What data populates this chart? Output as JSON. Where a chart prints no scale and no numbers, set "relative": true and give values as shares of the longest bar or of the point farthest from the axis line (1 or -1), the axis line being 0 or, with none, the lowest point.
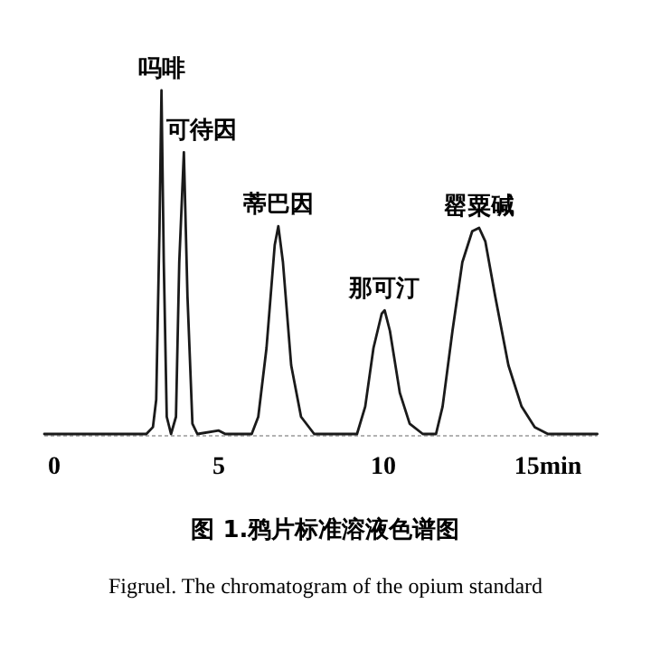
{
  "chart_data": {
    "type": "line",
    "relative": true,
    "color": "#1a1a1a",
    "x": [
      -0.3,
      2.8,
      3.0,
      3.1,
      3.2,
      3.26,
      3.33,
      3.42,
      3.55,
      3.7,
      3.8,
      3.94,
      4.05,
      4.2,
      4.35,
      5.0,
      5.2,
      6.0,
      6.2,
      6.45,
      6.7,
      6.81,
      6.95,
      7.2,
      7.5,
      7.9,
      9.2,
      9.45,
      9.7,
      9.95,
      10.04,
      10.2,
      10.5,
      10.8,
      11.2,
      11.6,
      11.8,
      12.1,
      12.4,
      12.7,
      12.91,
      13.1,
      13.4,
      13.8,
      14.2,
      14.6,
      15.0,
      16.5
    ],
    "values": [
      0,
      0,
      0.02,
      0.1,
      0.6,
      1,
      0.5,
      0.05,
      0,
      0.05,
      0.5,
      0.82,
      0.4,
      0.03,
      0,
      0.01,
      0,
      0,
      0.05,
      0.25,
      0.55,
      0.605,
      0.5,
      0.2,
      0.05,
      0,
      0,
      0.08,
      0.25,
      0.35,
      0.36,
      0.3,
      0.12,
      0.03,
      0,
      0,
      0.08,
      0.3,
      0.5,
      0.59,
      0.6,
      0.56,
      0.4,
      0.2,
      0.08,
      0.02,
      0,
      0
    ],
    "xlim": [
      -0.3,
      16.5
    ],
    "xticks": [
      0,
      5,
      10,
      {
        "value": 15,
        "label": "15min"
      }
    ],
    "annotations": [
      {
        "text": "吗啡",
        "x": 3.26,
        "y": 1
      },
      {
        "text": "可待因",
        "x": 3.94,
        "y": 0.82
      },
      {
        "text": "蒂巴因",
        "x": 6.81,
        "y": 0.605
      },
      {
        "text": "那可汀",
        "x": 10.04,
        "y": 0.36
      },
      {
        "text": "罂粟碱",
        "x": 12.91,
        "y": 0.6
      },
      "图 1.鸦片标准溶液色谱图",
      "Figruel.  The chromatogram of the opium standard"
    ]
  }
}
